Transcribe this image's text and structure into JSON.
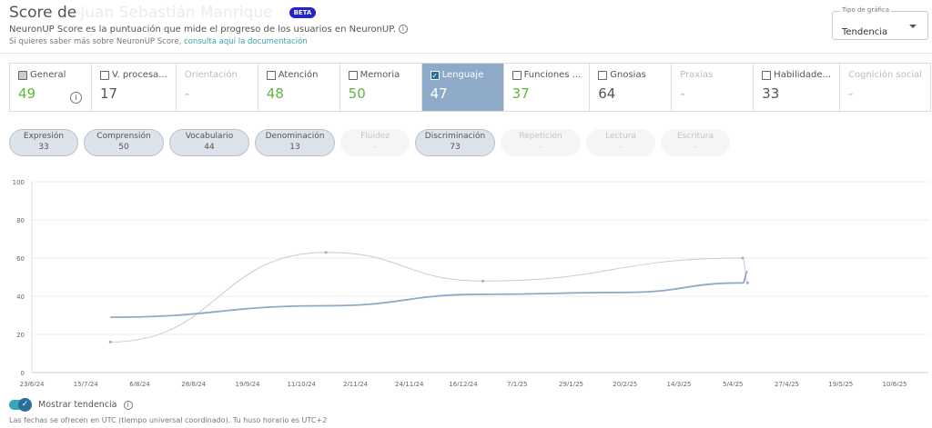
{
  "header": {
    "title": "Score de",
    "user_name": "Juan Sebastián Manrique",
    "badge": "BETA",
    "description": "NeuronUP Score es la puntuación que mide el progreso de los usuarios en NeuronUP.",
    "more_info": "Si quieres saber más sobre NeuronUP Score,",
    "doc_link": "consulta aquí la documentación"
  },
  "chart_type_select": {
    "label": "Tipo de gráfica",
    "value": "Tendencia"
  },
  "categories": [
    {
      "label": "General",
      "value": "49",
      "checkbox": "gray",
      "green": true,
      "info": true
    },
    {
      "label": "V. procesa...",
      "value": "17",
      "checkbox": "empty"
    },
    {
      "label": "Orientación",
      "value": "-",
      "disabled": true
    },
    {
      "label": "Atención",
      "value": "48",
      "checkbox": "empty",
      "green": true
    },
    {
      "label": "Memoria",
      "value": "50",
      "checkbox": "empty",
      "green": true
    },
    {
      "label": "Lenguaje",
      "value": "47",
      "checkbox": "checked",
      "active": true
    },
    {
      "label": "Funciones ...",
      "value": "37",
      "checkbox": "empty",
      "green": true
    },
    {
      "label": "Gnosias",
      "value": "64",
      "checkbox": "empty"
    },
    {
      "label": "Praxias",
      "value": "-",
      "disabled": true
    },
    {
      "label": "Habilidade...",
      "value": "33",
      "checkbox": "empty"
    },
    {
      "label": "Cognición social",
      "value": "-",
      "disabled": true
    }
  ],
  "subcategories": [
    {
      "label": "Expresión",
      "value": "33"
    },
    {
      "label": "Comprensión",
      "value": "50",
      "wide": true
    },
    {
      "label": "Vocabulario",
      "value": "44",
      "wide": true
    },
    {
      "label": "Denominación",
      "value": "13",
      "wide": true
    },
    {
      "label": "Fluidez",
      "value": "-",
      "disabled": true
    },
    {
      "label": "Discriminación",
      "value": "73",
      "wide": true
    },
    {
      "label": "Repetición",
      "value": "-",
      "disabled": true,
      "wide": true
    },
    {
      "label": "Lectura",
      "value": "-",
      "disabled": true
    },
    {
      "label": "Escritura",
      "value": "-",
      "disabled": true
    }
  ],
  "chart_data": {
    "type": "line",
    "ylim": [
      0,
      100
    ],
    "yticks": [
      "0",
      "20",
      "40",
      "60",
      "80",
      "100"
    ],
    "xticks": [
      "23/6/24",
      "15/7/24",
      "6/8/24",
      "28/8/24",
      "19/9/24",
      "11/10/24",
      "2/11/24",
      "24/11/24",
      "16/12/24",
      "7/1/25",
      "29/1/25",
      "20/2/25",
      "14/3/25",
      "5/4/25",
      "27/4/25",
      "19/5/25",
      "10/6/25"
    ],
    "grid": true,
    "colors": {
      "score": "#c8ccd2",
      "trend": "#8fa9c9"
    },
    "series": [
      {
        "key": "score",
        "points": [
          [
            "25/7/24",
            16
          ],
          [
            "21/10/24",
            63
          ],
          [
            "24/12/24",
            48
          ],
          [
            "9/4/25",
            60
          ],
          [
            "11/4/25",
            47
          ]
        ]
      },
      {
        "key": "trend",
        "points": [
          [
            "25/7/24",
            29
          ],
          [
            "21/10/24",
            35
          ],
          [
            "24/12/24",
            41
          ],
          [
            "20/2/25",
            42
          ],
          [
            "9/4/25",
            47
          ],
          [
            "11/4/25",
            53
          ]
        ]
      }
    ]
  },
  "trend_toggle": {
    "label": "Mostrar tendencia",
    "on": true
  },
  "footer": "Las fechas se ofrecen en UTC (tiempo universal coordinado). Tu huso horario es UTC+2"
}
